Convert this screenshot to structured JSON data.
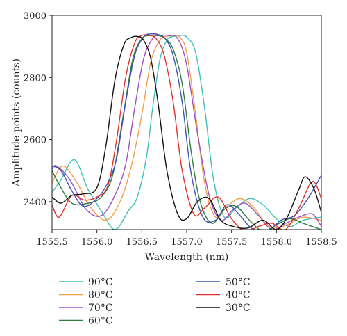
{
  "chart_data": {
    "type": "line",
    "title": "",
    "xlabel": "Wavelength (nm)",
    "ylabel": "Amplitude points (counts)",
    "xlim": [
      1555.5,
      1558.5
    ],
    "ylim": [
      2310,
      3000
    ],
    "xticks": [
      1555.5,
      1556.0,
      1556.5,
      1557.0,
      1557.5,
      1558.0,
      1558.5
    ],
    "xtick_labels": [
      "1555.5",
      "1556.0",
      "1556.5",
      "1557.0",
      "1557.5",
      "1558.0",
      "1558.5"
    ],
    "yticks": [
      2400,
      2600,
      2800,
      3000
    ],
    "ytick_labels": [
      "2400",
      "2600",
      "2800",
      "3000"
    ],
    "grid": false,
    "legend_position": "bottom",
    "series": [
      {
        "name": "90°C",
        "color": "#3fbfb7",
        "x": [
          1555.5,
          1555.6,
          1555.75,
          1555.9,
          1556.05,
          1556.2,
          1556.35,
          1556.45,
          1556.55,
          1556.62,
          1556.7,
          1556.78,
          1556.85,
          1556.92,
          1557.0,
          1557.1,
          1557.2,
          1557.3,
          1557.42,
          1557.55,
          1557.7,
          1557.85,
          1558.0,
          1558.15,
          1558.3,
          1558.5
        ],
        "y": [
          2430,
          2470,
          2535,
          2440,
          2370,
          2310,
          2370,
          2415,
          2540,
          2700,
          2855,
          2920,
          2932,
          2935,
          2930,
          2880,
          2700,
          2470,
          2350,
          2380,
          2410,
          2390,
          2345,
          2320,
          2340,
          2350
        ]
      },
      {
        "name": "80°C",
        "color": "#f59f4b",
        "x": [
          1555.5,
          1555.62,
          1555.78,
          1555.92,
          1556.1,
          1556.25,
          1556.38,
          1556.5,
          1556.6,
          1556.7,
          1556.78,
          1556.85,
          1556.92,
          1557.0,
          1557.1,
          1557.2,
          1557.32,
          1557.45,
          1557.6,
          1557.75,
          1557.88,
          1558.0,
          1558.15,
          1558.3,
          1558.5
        ],
        "y": [
          2460,
          2515,
          2460,
          2385,
          2340,
          2395,
          2510,
          2680,
          2850,
          2920,
          2932,
          2935,
          2930,
          2880,
          2680,
          2460,
          2350,
          2385,
          2410,
          2380,
          2330,
          2315,
          2330,
          2350,
          2340
        ]
      },
      {
        "name": "70°C",
        "color": "#9f4fbf",
        "x": [
          1555.5,
          1555.55,
          1555.7,
          1555.88,
          1556.05,
          1556.2,
          1556.32,
          1556.42,
          1556.52,
          1556.62,
          1556.7,
          1556.8,
          1556.9,
          1557.0,
          1557.12,
          1557.25,
          1557.38,
          1557.52,
          1557.65,
          1557.8,
          1557.95,
          1558.1,
          1558.25,
          1558.4,
          1558.5
        ],
        "y": [
          2505,
          2515,
          2470,
          2375,
          2355,
          2420,
          2520,
          2700,
          2860,
          2925,
          2935,
          2935,
          2925,
          2840,
          2620,
          2420,
          2340,
          2375,
          2395,
          2355,
          2310,
          2330,
          2350,
          2360,
          2320
        ]
      },
      {
        "name": "60°C",
        "color": "#2e7d3c",
        "x": [
          1555.5,
          1555.58,
          1555.72,
          1555.9,
          1556.05,
          1556.18,
          1556.3,
          1556.4,
          1556.5,
          1556.6,
          1556.68,
          1556.76,
          1556.85,
          1556.95,
          1557.05,
          1557.15,
          1557.28,
          1557.42,
          1557.55,
          1557.7,
          1557.85,
          1558.0,
          1558.15,
          1558.3,
          1558.5
        ],
        "y": [
          2500,
          2455,
          2395,
          2395,
          2415,
          2490,
          2690,
          2860,
          2925,
          2935,
          2935,
          2925,
          2890,
          2780,
          2560,
          2400,
          2330,
          2375,
          2385,
          2340,
          2305,
          2325,
          2345,
          2330,
          2310
        ]
      },
      {
        "name": "50°C",
        "color": "#3f51b5",
        "x": [
          1555.5,
          1555.6,
          1555.72,
          1555.85,
          1556.0,
          1556.12,
          1556.22,
          1556.32,
          1556.42,
          1556.52,
          1556.6,
          1556.68,
          1556.76,
          1556.85,
          1556.95,
          1557.05,
          1557.18,
          1557.32,
          1557.45,
          1557.58,
          1557.72,
          1557.88,
          1558.05,
          1558.2,
          1558.35,
          1558.5
        ],
        "y": [
          2515,
          2500,
          2435,
          2385,
          2410,
          2460,
          2540,
          2720,
          2870,
          2930,
          2940,
          2938,
          2925,
          2870,
          2720,
          2490,
          2350,
          2340,
          2390,
          2360,
          2315,
          2300,
          2340,
          2355,
          2410,
          2485
        ]
      },
      {
        "name": "40°C",
        "color": "#e0322a",
        "x": [
          1555.5,
          1555.58,
          1555.72,
          1555.86,
          1556.0,
          1556.12,
          1556.22,
          1556.32,
          1556.42,
          1556.5,
          1556.58,
          1556.66,
          1556.75,
          1556.85,
          1556.95,
          1557.08,
          1557.2,
          1557.35,
          1557.5,
          1557.65,
          1557.8,
          1557.95,
          1558.1,
          1558.25,
          1558.4,
          1558.5
        ],
        "y": [
          2390,
          2350,
          2420,
          2405,
          2415,
          2450,
          2600,
          2800,
          2910,
          2935,
          2935,
          2925,
          2870,
          2720,
          2500,
          2360,
          2380,
          2415,
          2345,
          2305,
          2320,
          2330,
          2310,
          2380,
          2465,
          2410
        ]
      },
      {
        "name": "30°C",
        "color": "#111111",
        "x": [
          1555.5,
          1555.6,
          1555.72,
          1555.85,
          1556.0,
          1556.1,
          1556.2,
          1556.3,
          1556.38,
          1556.45,
          1556.52,
          1556.6,
          1556.68,
          1556.78,
          1556.9,
          1557.0,
          1557.12,
          1557.25,
          1557.38,
          1557.52,
          1557.68,
          1557.85,
          1558.0,
          1558.12,
          1558.25,
          1558.32,
          1558.42,
          1558.5
        ],
        "y": [
          2415,
          2395,
          2420,
          2425,
          2445,
          2580,
          2790,
          2905,
          2928,
          2932,
          2920,
          2860,
          2720,
          2500,
          2360,
          2345,
          2400,
          2410,
          2340,
          2320,
          2315,
          2340,
          2310,
          2350,
          2440,
          2480,
          2440,
          2365
        ]
      }
    ]
  }
}
